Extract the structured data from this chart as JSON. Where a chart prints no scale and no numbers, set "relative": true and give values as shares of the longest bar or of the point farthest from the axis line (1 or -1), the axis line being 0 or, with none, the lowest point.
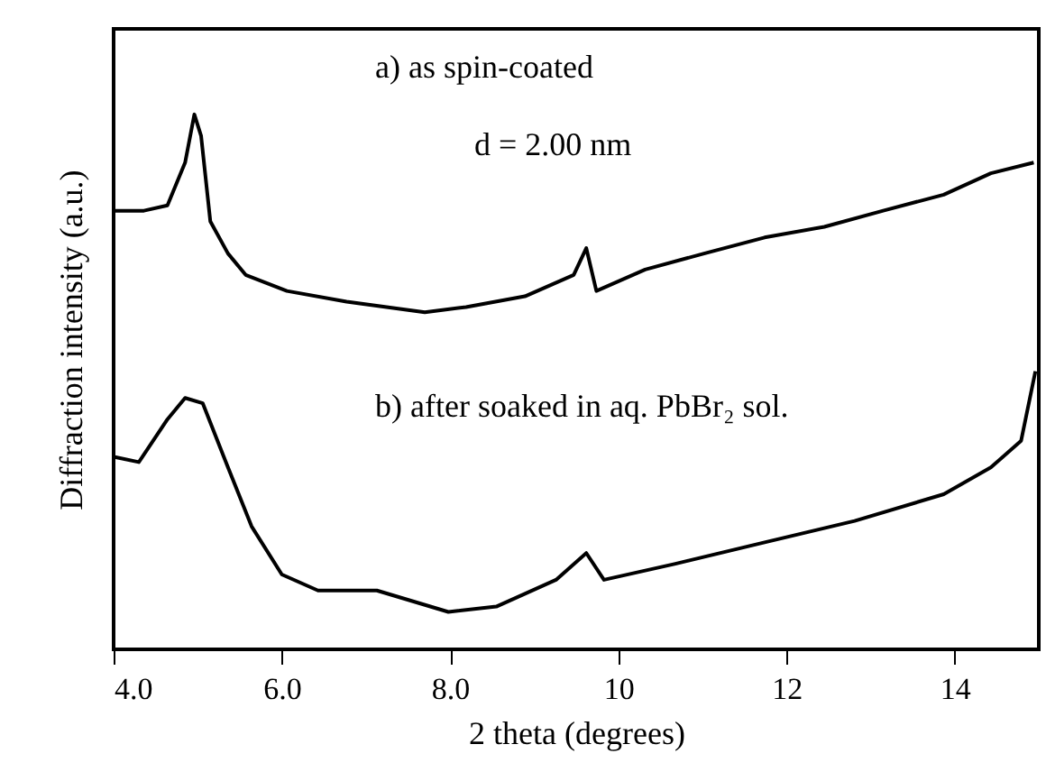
{
  "chart_data": {
    "type": "line",
    "relative": true,
    "xlabel": "2 theta (degrees)",
    "ylabel": "Diffraction intensity (a.u.)",
    "xlim": [
      4,
      15
    ],
    "xticks": [
      {
        "value": 4,
        "label": "4.0"
      },
      {
        "value": 6,
        "label": "6.0"
      },
      {
        "value": 8,
        "label": "8.0"
      },
      10,
      12,
      14
    ],
    "tick_labels": "x",
    "line_style": "solid",
    "marker": "none",
    "annotations": [
      "a) as spin-coated",
      "d = 2.00 nm",
      "b) after soaked in aq. PbBr₂ sol."
    ],
    "series": [
      {
        "color": "#000000",
        "x": [
          4.0,
          4.36,
          4.64,
          4.85,
          4.96,
          5.04,
          5.15,
          5.36,
          5.57,
          6.06,
          6.77,
          7.7,
          8.19,
          8.89,
          9.47,
          9.62,
          9.74,
          10.32,
          11.02,
          11.74,
          12.45,
          13.15,
          13.87,
          14.43,
          14.94
        ],
        "values": [
          0.82,
          0.82,
          0.83,
          0.91,
          1.0,
          0.96,
          0.8,
          0.74,
          0.7,
          0.67,
          0.65,
          0.63,
          0.64,
          0.66,
          0.7,
          0.75,
          0.67,
          0.71,
          0.74,
          0.77,
          0.79,
          0.82,
          0.85,
          0.89,
          0.91
        ]
      },
      {
        "color": "#000000",
        "x": [
          4.0,
          4.3,
          4.64,
          4.85,
          5.06,
          5.36,
          5.64,
          6.0,
          6.43,
          7.13,
          7.98,
          8.55,
          9.26,
          9.62,
          9.83,
          10.68,
          11.74,
          12.81,
          13.87,
          14.43,
          14.79,
          14.96
        ],
        "values": [
          0.36,
          0.35,
          0.43,
          0.47,
          0.46,
          0.34,
          0.23,
          0.14,
          0.11,
          0.11,
          0.07,
          0.08,
          0.13,
          0.18,
          0.13,
          0.16,
          0.2,
          0.24,
          0.29,
          0.34,
          0.39,
          0.52
        ]
      }
    ]
  }
}
